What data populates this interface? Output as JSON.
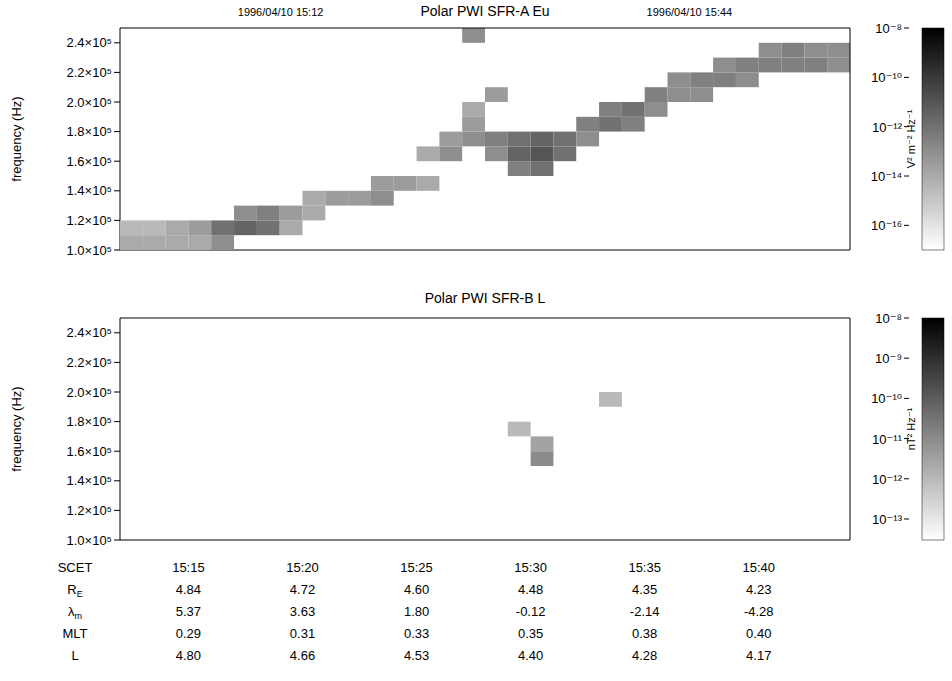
{
  "header": {
    "start": "1996/04/10 15:12",
    "end": "1996/04/10 15:44"
  },
  "chart_data": [
    {
      "type": "heatmap",
      "title": "Polar PWI SFR-A Eu",
      "y_label": "frequency (Hz)",
      "xlim": [
        912,
        944
      ],
      "xticks": [
        {
          "value": 915,
          "label": "15:15"
        },
        {
          "value": 920,
          "label": "15:20"
        },
        {
          "value": 925,
          "label": "15:25"
        },
        {
          "value": 930,
          "label": "15:30"
        },
        {
          "value": 935,
          "label": "15:35"
        },
        {
          "value": 940,
          "label": "15:40"
        }
      ],
      "ylim": [
        100000,
        250000
      ],
      "yticks": [
        {
          "value": 100000,
          "label": "1.0×10⁵"
        },
        {
          "value": 120000,
          "label": "1.2×10⁵"
        },
        {
          "value": 140000,
          "label": "1.4×10⁵"
        },
        {
          "value": 160000,
          "label": "1.6×10⁵"
        },
        {
          "value": 180000,
          "label": "1.8×10⁵"
        },
        {
          "value": 200000,
          "label": "2.0×10⁵"
        },
        {
          "value": 220000,
          "label": "2.2×10⁵"
        },
        {
          "value": 240000,
          "label": "2.4×10⁵"
        }
      ],
      "tick_labels": "y",
      "cell_size": {
        "dx": 1,
        "dy": 10000
      },
      "cells": [
        [
          912,
          100000,
          1e-14
        ],
        [
          912,
          110000,
          3e-15
        ],
        [
          913,
          100000,
          1e-14
        ],
        [
          913,
          110000,
          3e-15
        ],
        [
          914,
          100000,
          1e-14
        ],
        [
          914,
          110000,
          1e-14
        ],
        [
          915,
          100000,
          1e-14
        ],
        [
          915,
          110000,
          3e-14
        ],
        [
          916,
          100000,
          1e-13
        ],
        [
          916,
          110000,
          1e-12
        ],
        [
          917,
          110000,
          3e-12
        ],
        [
          917,
          120000,
          1e-13
        ],
        [
          918,
          110000,
          1e-12
        ],
        [
          918,
          120000,
          3e-13
        ],
        [
          919,
          110000,
          1e-14
        ],
        [
          919,
          120000,
          3e-14
        ],
        [
          920,
          120000,
          1e-14
        ],
        [
          920,
          130000,
          1e-14
        ],
        [
          921,
          130000,
          3e-14
        ],
        [
          922,
          130000,
          3e-14
        ],
        [
          923,
          130000,
          1e-13
        ],
        [
          923,
          140000,
          3e-14
        ],
        [
          924,
          140000,
          3e-14
        ],
        [
          925,
          140000,
          1e-14
        ],
        [
          925,
          160000,
          1e-14
        ],
        [
          926,
          160000,
          1e-13
        ],
        [
          926,
          170000,
          3e-14
        ],
        [
          927,
          170000,
          1e-13
        ],
        [
          927,
          180000,
          3e-14
        ],
        [
          927,
          190000,
          1e-14
        ],
        [
          927,
          240000,
          1e-13
        ],
        [
          928,
          160000,
          1e-13
        ],
        [
          928,
          170000,
          3e-13
        ],
        [
          928,
          200000,
          3e-14
        ],
        [
          929,
          150000,
          3e-13
        ],
        [
          929,
          160000,
          3e-12
        ],
        [
          929,
          170000,
          1e-12
        ],
        [
          930,
          150000,
          1e-12
        ],
        [
          930,
          160000,
          1e-11
        ],
        [
          930,
          170000,
          3e-12
        ],
        [
          931,
          160000,
          1e-12
        ],
        [
          931,
          170000,
          1e-12
        ],
        [
          932,
          170000,
          1e-13
        ],
        [
          932,
          180000,
          3e-13
        ],
        [
          933,
          180000,
          1e-12
        ],
        [
          933,
          190000,
          3e-13
        ],
        [
          934,
          180000,
          3e-13
        ],
        [
          934,
          190000,
          1e-12
        ],
        [
          935,
          190000,
          1e-13
        ],
        [
          935,
          200000,
          3e-13
        ],
        [
          936,
          200000,
          1e-13
        ],
        [
          936,
          210000,
          1e-13
        ],
        [
          937,
          200000,
          1e-13
        ],
        [
          937,
          210000,
          3e-13
        ],
        [
          938,
          210000,
          3e-13
        ],
        [
          938,
          220000,
          1e-13
        ],
        [
          939,
          210000,
          1e-13
        ],
        [
          939,
          220000,
          3e-13
        ],
        [
          940,
          220000,
          3e-13
        ],
        [
          940,
          230000,
          1e-13
        ],
        [
          941,
          220000,
          3e-13
        ],
        [
          941,
          230000,
          3e-13
        ],
        [
          942,
          220000,
          3e-13
        ],
        [
          942,
          230000,
          1e-13
        ],
        [
          943,
          220000,
          1e-13
        ],
        [
          943,
          230000,
          1e-13
        ]
      ],
      "colorbar": {
        "label": "V² m⁻² Hz⁻¹",
        "range": [
          1e-17,
          1e-08
        ],
        "ticks": [
          {
            "value": 1e-08,
            "label": "10⁻⁸"
          },
          {
            "value": 1e-10,
            "label": "10⁻¹⁰"
          },
          {
            "value": 1e-12,
            "label": "10⁻¹²"
          },
          {
            "value": 1e-14,
            "label": "10⁻¹⁴"
          },
          {
            "value": 1e-16,
            "label": "10⁻¹⁶"
          }
        ]
      }
    },
    {
      "type": "heatmap",
      "title": "Polar PWI SFR-B L",
      "y_label": "frequency (Hz)",
      "xlim": [
        912,
        944
      ],
      "xticks": [
        {
          "value": 915,
          "label": "15:15"
        },
        {
          "value": 920,
          "label": "15:20"
        },
        {
          "value": 925,
          "label": "15:25"
        },
        {
          "value": 930,
          "label": "15:30"
        },
        {
          "value": 935,
          "label": "15:35"
        },
        {
          "value": 940,
          "label": "15:40"
        }
      ],
      "ylim": [
        100000,
        250000
      ],
      "yticks": [
        {
          "value": 100000,
          "label": "1.0×10⁵"
        },
        {
          "value": 120000,
          "label": "1.2×10⁵"
        },
        {
          "value": 140000,
          "label": "1.4×10⁵"
        },
        {
          "value": 160000,
          "label": "1.6×10⁵"
        },
        {
          "value": 180000,
          "label": "1.8×10⁵"
        },
        {
          "value": 200000,
          "label": "2.0×10⁵"
        },
        {
          "value": 220000,
          "label": "2.2×10⁵"
        },
        {
          "value": 240000,
          "label": "2.4×10⁵"
        }
      ],
      "tick_labels": "y",
      "cell_size": {
        "dx": 1,
        "dy": 10000
      },
      "cells": [
        [
          929,
          170000,
          1e-12
        ],
        [
          930,
          150000,
          1e-11
        ],
        [
          930,
          160000,
          3e-12
        ],
        [
          933,
          190000,
          1e-12
        ]
      ],
      "colorbar": {
        "label": "nT² Hz⁻¹",
        "range": [
          3e-14,
          1e-08
        ],
        "ticks": [
          {
            "value": 1e-08,
            "label": "10⁻⁸"
          },
          {
            "value": 1e-09,
            "label": "10⁻⁹"
          },
          {
            "value": 1e-10,
            "label": "10⁻¹⁰"
          },
          {
            "value": 1e-11,
            "label": "10⁻¹¹"
          },
          {
            "value": 1e-12,
            "label": "10⁻¹²"
          },
          {
            "value": 1e-13,
            "label": "10⁻¹³"
          }
        ]
      }
    }
  ],
  "ephemeris": {
    "x_label": "SCET",
    "rows": [
      {
        "label": "R",
        "sub": "E",
        "values": [
          "4.84",
          "4.72",
          "4.60",
          "4.48",
          "4.35",
          "4.23"
        ]
      },
      {
        "label": "λ",
        "sub": "m",
        "values": [
          "5.37",
          "3.63",
          "1.80",
          "-0.12",
          "-2.14",
          "-4.28"
        ]
      },
      {
        "label": "MLT",
        "sub": "",
        "values": [
          "0.29",
          "0.31",
          "0.33",
          "0.35",
          "0.38",
          "0.40"
        ]
      },
      {
        "label": "L",
        "sub": "",
        "values": [
          "4.80",
          "4.66",
          "4.53",
          "4.40",
          "4.28",
          "4.17"
        ]
      }
    ]
  }
}
